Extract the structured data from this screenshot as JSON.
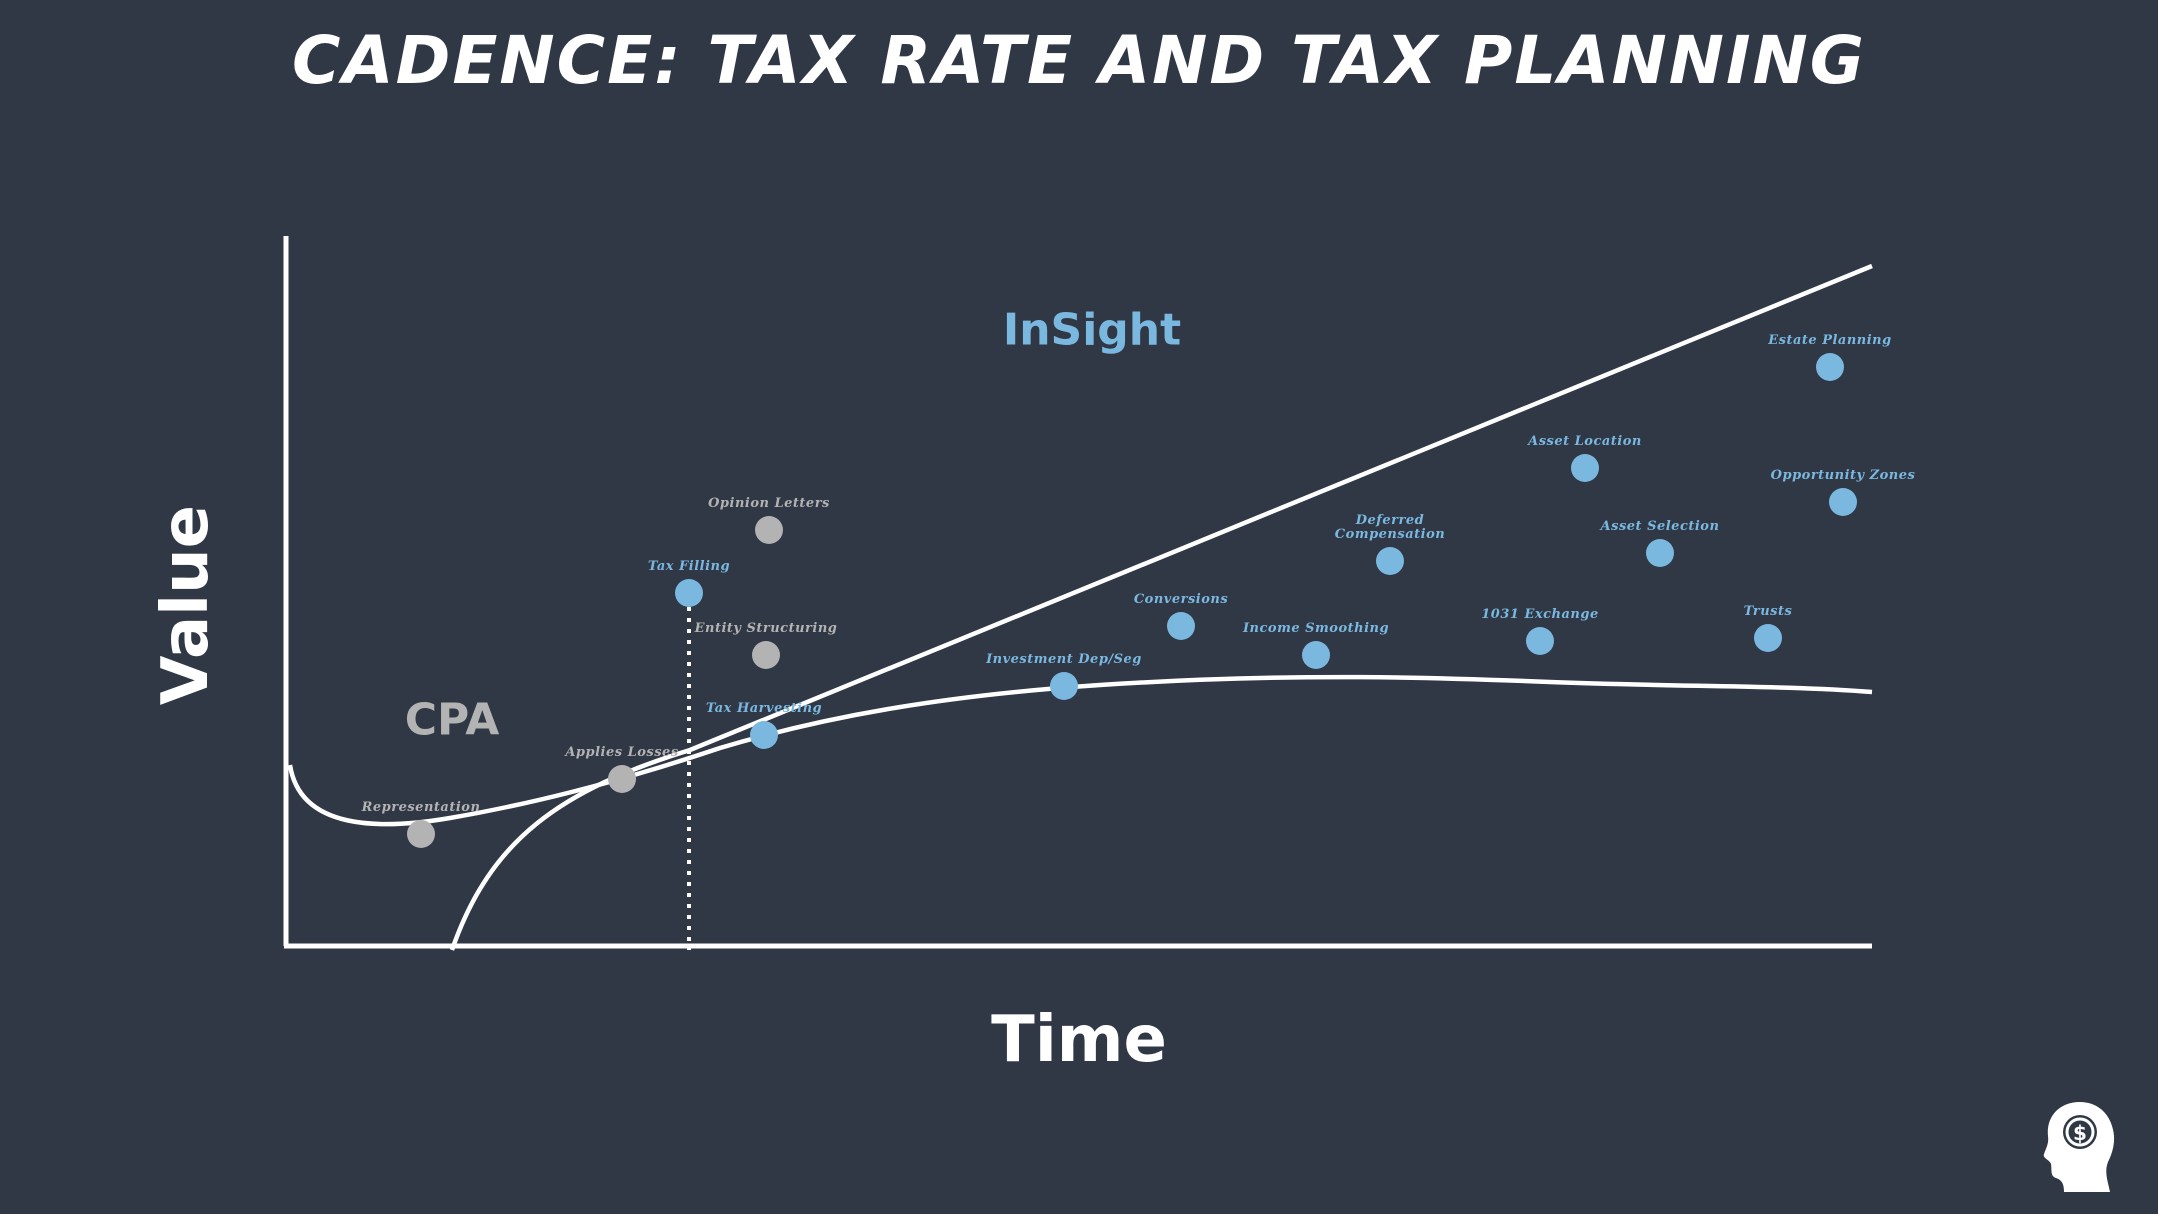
{
  "title": "Cadence: Tax Rate and Tax Planning",
  "axes": {
    "x_label": "Time",
    "y_label": "Value"
  },
  "regions": [
    {
      "label": "InSight",
      "color": "#7ab8e0"
    },
    {
      "label": "CPA",
      "color": "#b3b3b3"
    }
  ],
  "colors": {
    "background": "#303745",
    "line": "#ffffff",
    "cpa_point": "#b3b3b3",
    "insight_point": "#7ab8e0"
  },
  "points": [
    {
      "label": "Representation",
      "group": "cpa"
    },
    {
      "label": "Applies Losses",
      "group": "cpa"
    },
    {
      "label": "Tax Filling",
      "group": "insight"
    },
    {
      "label": "Opinion Letters",
      "group": "cpa"
    },
    {
      "label": "Entity Structuring",
      "group": "cpa"
    },
    {
      "label": "Tax Harvesting",
      "group": "insight"
    },
    {
      "label": "Investment Dep/Seg",
      "group": "insight"
    },
    {
      "label": "Conversions",
      "group": "insight"
    },
    {
      "label": "Income Smoothing",
      "group": "insight"
    },
    {
      "label": "Deferred Compensation",
      "group": "insight"
    },
    {
      "label": "1031 Exchange",
      "group": "insight"
    },
    {
      "label": "Asset Location",
      "group": "insight"
    },
    {
      "label": "Asset Selection",
      "group": "insight"
    },
    {
      "label": "Trusts",
      "group": "insight"
    },
    {
      "label": "Estate Planning",
      "group": "insight"
    },
    {
      "label": "Opportunity Zones",
      "group": "insight"
    }
  ],
  "logo": {
    "icon": "head-dollar-icon",
    "symbol": "$"
  }
}
